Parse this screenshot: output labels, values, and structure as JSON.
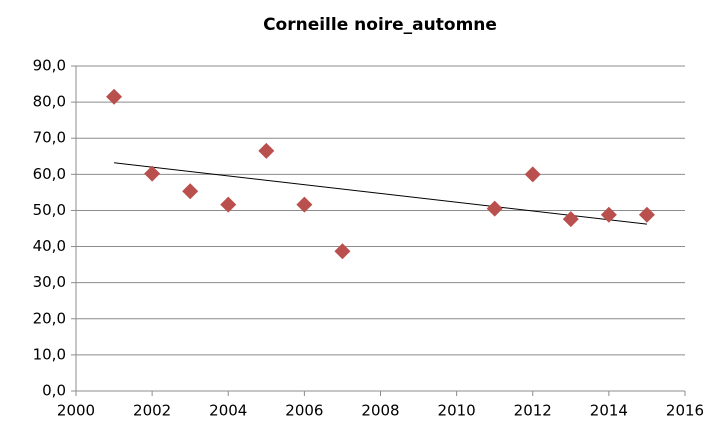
{
  "chart_data": {
    "type": "scatter",
    "title": "Corneille noire_automne",
    "x": [
      2001,
      2002,
      2003,
      2004,
      2005,
      2006,
      2007,
      2011,
      2012,
      2013,
      2014,
      2015
    ],
    "values": [
      81.5,
      60.2,
      55.3,
      51.6,
      66.5,
      51.6,
      38.7,
      50.5,
      60.0,
      47.6,
      48.8,
      48.8
    ],
    "color": "#b9504d",
    "trend": {
      "x": [
        2001,
        2015
      ],
      "values": [
        63.2,
        46.2
      ],
      "color": "#000000"
    },
    "xlim": [
      2000,
      2016
    ],
    "xticks": [
      2000,
      2002,
      2004,
      2006,
      2008,
      2010,
      2012,
      2014,
      2016
    ],
    "ylim": [
      0,
      90
    ],
    "yticks": [
      {
        "value": 0,
        "label": "0,0"
      },
      {
        "value": 10,
        "label": "10,0"
      },
      {
        "value": 20,
        "label": "20,0"
      },
      {
        "value": 30,
        "label": "30,0"
      },
      {
        "value": 40,
        "label": "40,0"
      },
      {
        "value": 50,
        "label": "50,0"
      },
      {
        "value": 60,
        "label": "60,0"
      },
      {
        "value": 70,
        "label": "70,0"
      },
      {
        "value": 80,
        "label": "80,0"
      },
      {
        "value": 90,
        "label": "90,0"
      }
    ],
    "grid": true
  }
}
